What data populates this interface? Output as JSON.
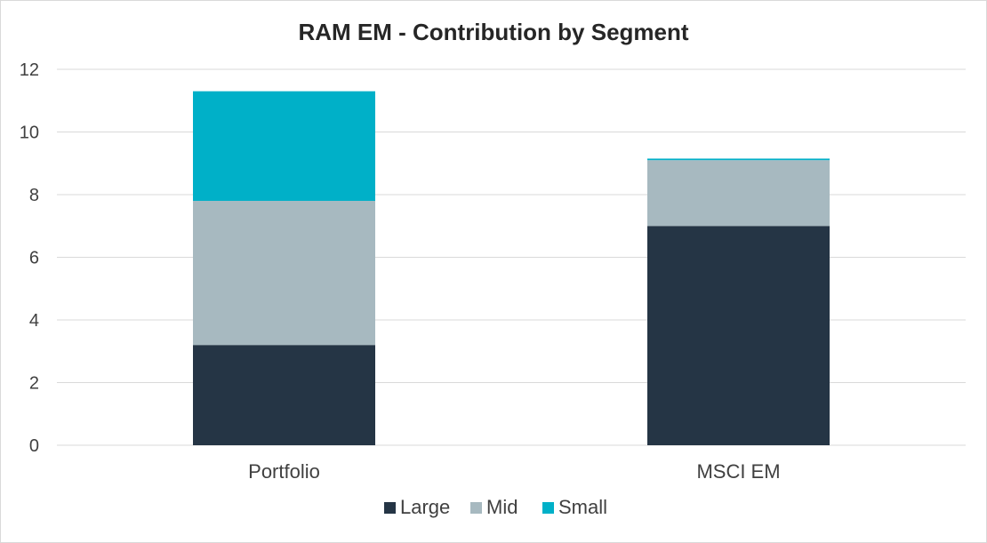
{
  "chart_data": {
    "type": "bar",
    "stacked": true,
    "title": "RAM EM - Contribution by Segment",
    "xlabel": "",
    "ylabel": "",
    "categories": [
      "Portfolio",
      "MSCI EM"
    ],
    "series": [
      {
        "name": "Large",
        "values": [
          3.2,
          7.0
        ],
        "color": "#253545"
      },
      {
        "name": "Mid",
        "values": [
          4.6,
          2.1
        ],
        "color": "#a7b9c0"
      },
      {
        "name": "Small",
        "values": [
          3.5,
          0.05
        ],
        "color": "#00b0c8"
      }
    ],
    "ylim": [
      0,
      12
    ],
    "yticks": [
      "0",
      "2",
      "4",
      "6",
      "8",
      "10",
      "12"
    ],
    "grid": true,
    "legend": "bottom"
  }
}
